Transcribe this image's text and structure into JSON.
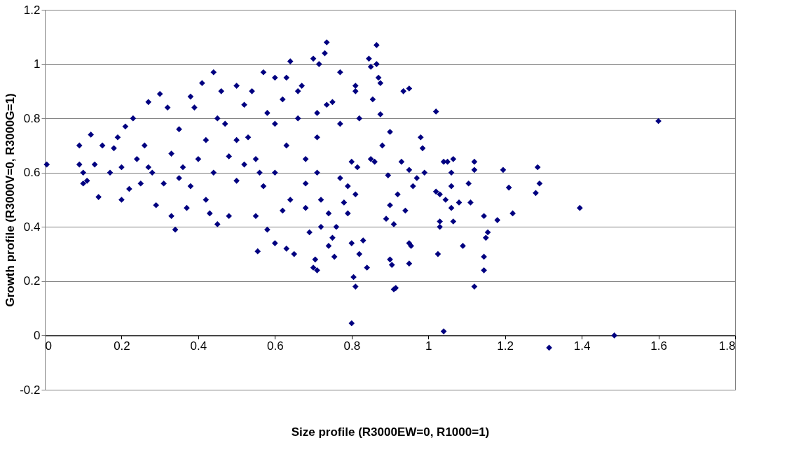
{
  "chart_data": {
    "type": "scatter",
    "xlabel": "Size profile (R3000EW=0, R1000=1)",
    "ylabel": "Growth profile (R3000V=0, R3000G=1)",
    "color": "#000080",
    "marker": "diamond",
    "grid": "y",
    "x": [
      0.005,
      1.6,
      1.395,
      1.315,
      1.485,
      1.04,
      0.8,
      1.285,
      1.29,
      1.28,
      1.21,
      1.22,
      1.18,
      1.195,
      1.12,
      1.145,
      1.145,
      1.15,
      1.155,
      1.145,
      1.12,
      1.12,
      1.11,
      1.105,
      1.09,
      1.08,
      1.065,
      1.06,
      1.06,
      1.06,
      1.065,
      1.05,
      1.04,
      1.045,
      1.03,
      1.03,
      1.03,
      1.025,
      1.02,
      1.02,
      0.98,
      0.99,
      0.985,
      0.97,
      0.96,
      0.95,
      0.94,
      0.95,
      0.955,
      0.95,
      0.935,
      0.95,
      0.93,
      0.92,
      0.91,
      0.91,
      0.915,
      0.9,
      0.905,
      0.9,
      0.9,
      0.895,
      0.89,
      0.88,
      0.875,
      0.875,
      0.87,
      0.865,
      0.865,
      0.85,
      0.845,
      0.855,
      0.85,
      0.86,
      0.84,
      0.83,
      0.82,
      0.81,
      0.805,
      0.8,
      0.81,
      0.815,
      0.82,
      0.81,
      0.81,
      0.8,
      0.79,
      0.79,
      0.78,
      0.77,
      0.77,
      0.77,
      0.76,
      0.755,
      0.75,
      0.74,
      0.74,
      0.735,
      0.73,
      0.735,
      0.75,
      0.71,
      0.705,
      0.7,
      0.72,
      0.72,
      0.71,
      0.71,
      0.71,
      0.715,
      0.7,
      0.69,
      0.68,
      0.68,
      0.67,
      0.66,
      0.65,
      0.64,
      0.64,
      0.63,
      0.62,
      0.63,
      0.63,
      0.6,
      0.6,
      0.6,
      0.58,
      0.57,
      0.56,
      0.555,
      0.55,
      0.55,
      0.54,
      0.53,
      0.52,
      0.5,
      0.5,
      0.48,
      0.47,
      0.46,
      0.45,
      0.44,
      0.44,
      0.43,
      0.42,
      0.41,
      0.4,
      0.39,
      0.38,
      0.37,
      0.36,
      0.35,
      0.34,
      0.33,
      0.33,
      0.32,
      0.31,
      0.3,
      0.29,
      0.28,
      0.27,
      0.26,
      0.25,
      0.24,
      0.23,
      0.22,
      0.21,
      0.2,
      0.2,
      0.19,
      0.18,
      0.17,
      0.15,
      0.14,
      0.13,
      0.12,
      0.11,
      0.1,
      0.09,
      0.09,
      0.1,
      0.38,
      0.45,
      0.52,
      0.58,
      0.62,
      0.66,
      0.48,
      0.35,
      0.27,
      0.42,
      0.5,
      0.57,
      0.6,
      0.68
    ],
    "values": [
      0.63,
      0.79,
      0.47,
      -0.045,
      0,
      0.015,
      0.045,
      0.62,
      0.56,
      0.525,
      0.545,
      0.45,
      0.425,
      0.61,
      0.18,
      0.24,
      0.29,
      0.36,
      0.38,
      0.44,
      0.61,
      0.64,
      0.49,
      0.56,
      0.33,
      0.49,
      0.42,
      0.47,
      0.55,
      0.6,
      0.65,
      0.64,
      0.64,
      0.5,
      0.52,
      0.42,
      0.4,
      0.3,
      0.53,
      0.825,
      0.73,
      0.6,
      0.69,
      0.58,
      0.55,
      0.61,
      0.46,
      0.34,
      0.33,
      0.265,
      0.9,
      0.91,
      0.64,
      0.52,
      0.41,
      0.17,
      0.175,
      0.28,
      0.26,
      0.48,
      0.75,
      0.59,
      0.43,
      0.7,
      0.815,
      0.93,
      0.95,
      1.07,
      1.0,
      0.99,
      1.02,
      0.87,
      0.65,
      0.64,
      0.25,
      0.35,
      0.3,
      0.18,
      0.215,
      0.34,
      0.52,
      0.62,
      0.8,
      0.92,
      0.9,
      0.64,
      0.55,
      0.45,
      0.49,
      0.58,
      0.78,
      0.97,
      0.4,
      0.29,
      0.36,
      0.33,
      0.45,
      1.08,
      1.04,
      0.85,
      0.86,
      0.24,
      0.28,
      0.25,
      0.4,
      0.5,
      0.6,
      0.73,
      0.82,
      1.0,
      1.02,
      0.38,
      0.56,
      0.65,
      0.92,
      0.9,
      0.3,
      1.01,
      0.5,
      0.32,
      0.46,
      0.95,
      0.7,
      0.95,
      0.6,
      0.34,
      0.39,
      0.97,
      0.6,
      0.31,
      0.44,
      0.65,
      0.9,
      0.73,
      0.63,
      0.92,
      0.57,
      0.44,
      0.78,
      0.9,
      0.41,
      0.97,
      0.6,
      0.45,
      0.72,
      0.93,
      0.65,
      0.84,
      0.55,
      0.47,
      0.62,
      0.76,
      0.39,
      0.44,
      0.67,
      0.84,
      0.56,
      0.89,
      0.48,
      0.6,
      0.86,
      0.7,
      0.56,
      0.65,
      0.8,
      0.54,
      0.77,
      0.5,
      0.62,
      0.73,
      0.69,
      0.6,
      0.7,
      0.51,
      0.63,
      0.74,
      0.57,
      0.56,
      0.7,
      0.63,
      0.6,
      0.88,
      0.8,
      0.85,
      0.82,
      0.87,
      0.8,
      0.66,
      0.58,
      0.62,
      0.5,
      0.72,
      0.55,
      0.78,
      0.47
    ],
    "xlim": [
      0,
      1.8
    ],
    "xticks": [
      0,
      0.2,
      0.4,
      0.6,
      0.8,
      1,
      1.2,
      1.4,
      1.6,
      1.8
    ],
    "ylim": [
      -0.2,
      1.2
    ],
    "yticks": [
      -0.2,
      0,
      0.2,
      0.4,
      0.6,
      0.8,
      1,
      1.2
    ]
  }
}
